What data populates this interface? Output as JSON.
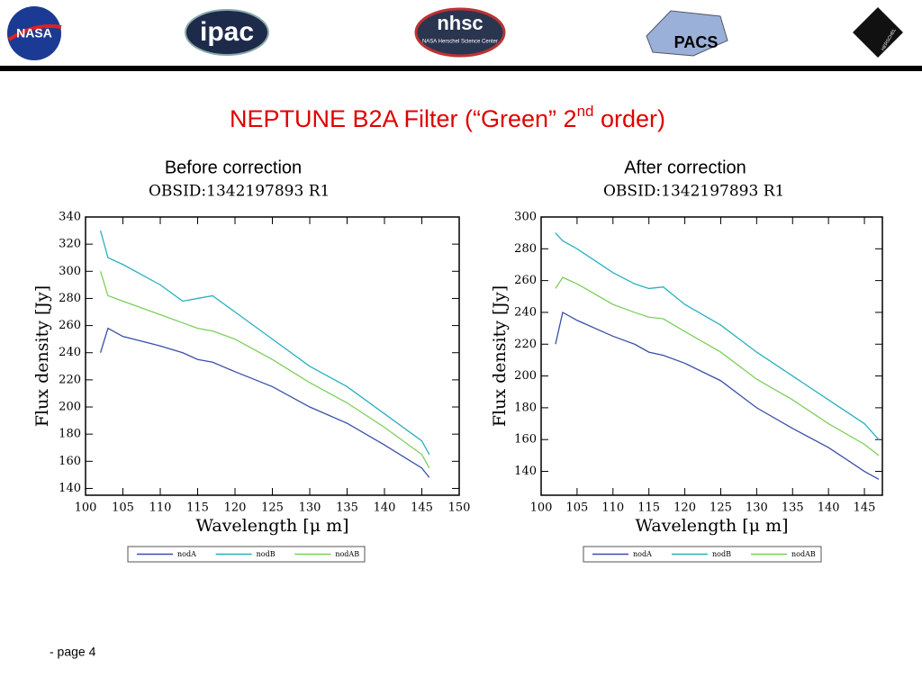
{
  "slide": {
    "title_parts": [
      "NEPTUNE B2A Filter (“Green” 2",
      "nd",
      " order)"
    ],
    "captions": [
      "Before correction",
      "After correction"
    ],
    "logos": {
      "nasa": "NASA",
      "ipac": "ipac",
      "nhsc": "nhsc",
      "nhsc_sub": "NASA Herschel Science Center",
      "pacs": "PACS",
      "herschel": "HERSCHEL"
    },
    "footer": "- page 4"
  },
  "chart_data": [
    {
      "type": "line",
      "title": "OBSID:1342197893 R1",
      "x_label": "Wavelength [μ m]",
      "y_label": "Flux density [Jy]",
      "x": [
        102,
        103,
        105,
        110,
        113,
        115,
        117,
        120,
        125,
        130,
        135,
        140,
        145,
        146
      ],
      "series": [
        {
          "name": "nodA",
          "color": "#3a4fa8",
          "values": [
            240,
            258,
            252,
            245,
            240,
            235,
            233,
            226,
            215,
            200,
            188,
            172,
            155,
            148
          ]
        },
        {
          "name": "nodB",
          "color": "#2ab0bf",
          "values": [
            330,
            310,
            305,
            290,
            278,
            280,
            282,
            270,
            250,
            230,
            215,
            195,
            175,
            165
          ]
        },
        {
          "name": "nodAB",
          "color": "#7ccf5c",
          "values": [
            300,
            282,
            278,
            268,
            262,
            258,
            256,
            250,
            235,
            218,
            203,
            185,
            165,
            155
          ]
        }
      ],
      "xlim": [
        100,
        150
      ],
      "xticks": [
        100,
        105,
        110,
        115,
        120,
        125,
        130,
        135,
        140,
        145,
        150
      ],
      "ylim": [
        135,
        340
      ],
      "yticks": [
        140,
        160,
        180,
        200,
        220,
        240,
        260,
        280,
        300,
        320,
        340
      ],
      "legend": "bottom"
    },
    {
      "type": "line",
      "title": "OBSID:1342197893 R1",
      "x_label": "Wavelength [μ m]",
      "y_label": "Flux density [Jy]",
      "x": [
        102,
        103,
        105,
        110,
        113,
        115,
        117,
        120,
        125,
        130,
        135,
        140,
        145,
        147
      ],
      "series": [
        {
          "name": "nodA",
          "color": "#3a4fa8",
          "values": [
            220,
            240,
            235,
            225,
            220,
            215,
            213,
            208,
            197,
            180,
            167,
            155,
            140,
            135
          ]
        },
        {
          "name": "nodB",
          "color": "#2ab0bf",
          "values": [
            290,
            285,
            280,
            265,
            258,
            255,
            256,
            245,
            232,
            215,
            200,
            185,
            170,
            160
          ]
        },
        {
          "name": "nodAB",
          "color": "#7ccf5c",
          "values": [
            255,
            262,
            258,
            245,
            240,
            237,
            236,
            228,
            215,
            198,
            185,
            170,
            157,
            150
          ]
        }
      ],
      "xlim": [
        100,
        147.5
      ],
      "xticks": [
        100,
        105,
        110,
        115,
        120,
        125,
        130,
        135,
        140,
        145
      ],
      "ylim": [
        125,
        300
      ],
      "yticks": [
        140,
        160,
        180,
        200,
        220,
        240,
        260,
        280,
        300
      ],
      "legend": "bottom"
    }
  ]
}
